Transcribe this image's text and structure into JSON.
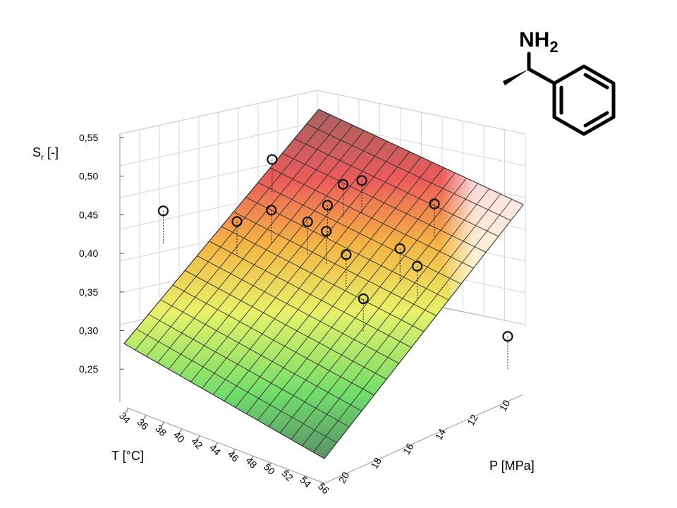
{
  "chart_data": {
    "type": "surface3d",
    "z_axis": {
      "label_main": "S",
      "label_sub": "r",
      "label_unit": " [-]",
      "ticks": [
        "0,55",
        "0,50",
        "0,45",
        "0,40",
        "0,35",
        "0,30",
        "0,25"
      ],
      "range": [
        0.2,
        0.55
      ]
    },
    "x_axis": {
      "label": "T [°C]",
      "ticks": [
        "34",
        "36",
        "38",
        "40",
        "42",
        "44",
        "46",
        "48",
        "50",
        "52",
        "54",
        "56"
      ],
      "range": [
        34,
        56
      ]
    },
    "y_axis": {
      "label": "P [MPa]",
      "ticks": [
        "10",
        "12",
        "14",
        "16",
        "18",
        "20"
      ],
      "range": [
        10,
        20
      ]
    },
    "points": [
      {
        "T": 34,
        "P": 14,
        "S": 0.34
      },
      {
        "T": 36,
        "P": 19,
        "S": 0.43
      },
      {
        "T": 38,
        "P": 10,
        "S": 0.26
      },
      {
        "T": 40,
        "P": 12,
        "S": 0.37
      },
      {
        "T": 42,
        "P": 16,
        "S": 0.5
      },
      {
        "T": 44,
        "P": 10,
        "S": 0.3
      },
      {
        "T": 44,
        "P": 12,
        "S": 0.25
      },
      {
        "T": 46,
        "P": 15,
        "S": 0.4
      },
      {
        "T": 46,
        "P": 18,
        "S": 0.47
      },
      {
        "T": 48,
        "P": 17,
        "S": 0.45
      },
      {
        "T": 50,
        "P": 12,
        "S": 0.33
      },
      {
        "T": 52,
        "P": 16,
        "S": 0.52
      },
      {
        "T": 54,
        "P": 18,
        "S": 0.55
      },
      {
        "T": 56,
        "P": 10,
        "S": 0.23
      },
      {
        "T": 56,
        "P": 14,
        "S": 0.48
      }
    ]
  },
  "molecule": {
    "group_main": "NH",
    "group_sub": "2"
  }
}
